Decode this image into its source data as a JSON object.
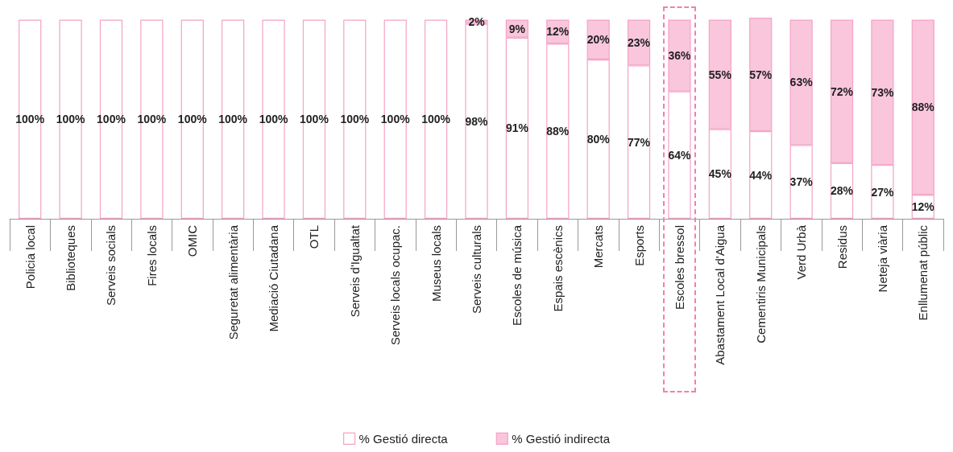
{
  "chart_data": {
    "type": "bar",
    "stacked": true,
    "categories": [
      "Policia local",
      "Biblioteques",
      "Serveis socials",
      "Fires locals",
      "OMIC",
      "Seguretat alimentària",
      "Mediació Ciutadana",
      "OTL",
      "Serveis d'Igualtat",
      "Serveis locals ocupac.",
      "Museus locals",
      "Serveis culturals",
      "Escoles de música",
      "Espais escènics",
      "Mercats",
      "Esports",
      "Escoles bressol",
      "Abastament Local d'Aigua",
      "Cementiris Municipals",
      "Verd Urbà",
      "Residus",
      "Neteja viària",
      "Enllumenat públic"
    ],
    "series": [
      {
        "name": "% Gestió directa",
        "color": "#ffffff",
        "values": [
          100,
          100,
          100,
          100,
          100,
          100,
          100,
          100,
          100,
          100,
          100,
          98,
          91,
          88,
          80,
          77,
          64,
          45,
          44,
          37,
          28,
          27,
          12
        ],
        "value_labels": [
          "100%",
          "100%",
          "100%",
          "100%",
          "100%",
          "100%",
          "100%",
          "100%",
          "100%",
          "100%",
          "100%",
          "98%",
          "91%",
          "88%",
          "80%",
          "77%",
          "64%",
          "45%",
          "44%",
          "37%",
          "28%",
          "27%",
          "12%"
        ]
      },
      {
        "name": "% Gestió indirecta",
        "color": "#f9c6dc",
        "values": [
          null,
          null,
          null,
          null,
          null,
          null,
          null,
          null,
          null,
          null,
          null,
          2,
          9,
          12,
          20,
          23,
          36,
          55,
          57,
          63,
          72,
          73,
          88
        ],
        "value_labels": [
          null,
          null,
          null,
          null,
          null,
          null,
          null,
          null,
          null,
          null,
          null,
          "2%",
          "9%",
          "12%",
          "20%",
          "23%",
          "36%",
          "55%",
          "57%",
          "63%",
          "72%",
          "73%",
          "88%"
        ]
      }
    ],
    "legend": "bottom"
  }
}
